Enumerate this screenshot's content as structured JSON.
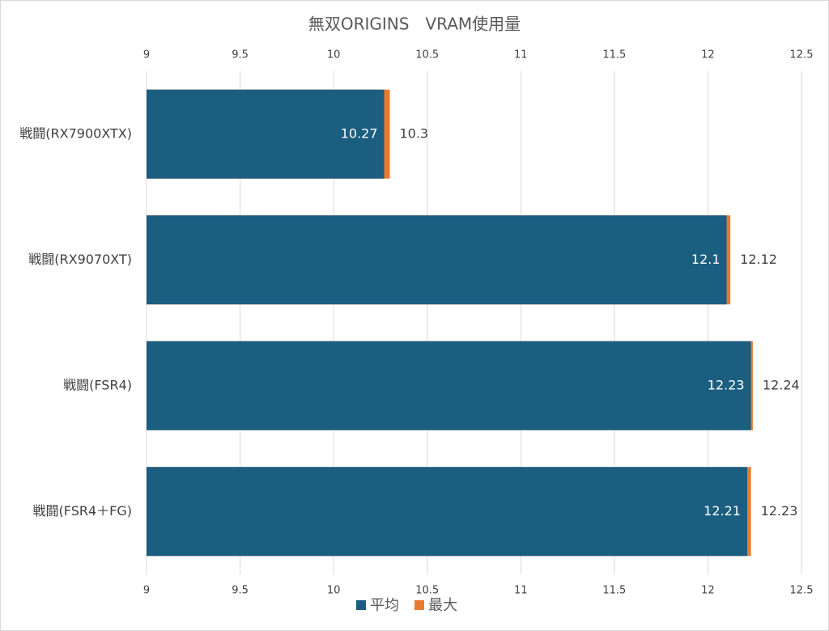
{
  "chart_data": {
    "type": "bar",
    "orientation": "horizontal",
    "overlap": true,
    "title": "無双ORIGINS　VRAM使用量",
    "categories": [
      "戦闘(RX7900XTX)",
      "戦闘(RX9070XT)",
      "戦闘(FSR4)",
      "戦闘(FSR4＋FG)"
    ],
    "series": [
      {
        "name": "平均",
        "color": "#1b5e80",
        "values": [
          10.27,
          12.1,
          12.23,
          12.21
        ]
      },
      {
        "name": "最大",
        "color": "#e97b2e",
        "values": [
          10.3,
          12.12,
          12.24,
          12.23
        ]
      }
    ],
    "xlim": [
      9,
      12.5
    ],
    "xticks": [
      9,
      9.5,
      10,
      10.5,
      11,
      11.5,
      12,
      12.5
    ],
    "grid": true,
    "legend": "bottom"
  }
}
